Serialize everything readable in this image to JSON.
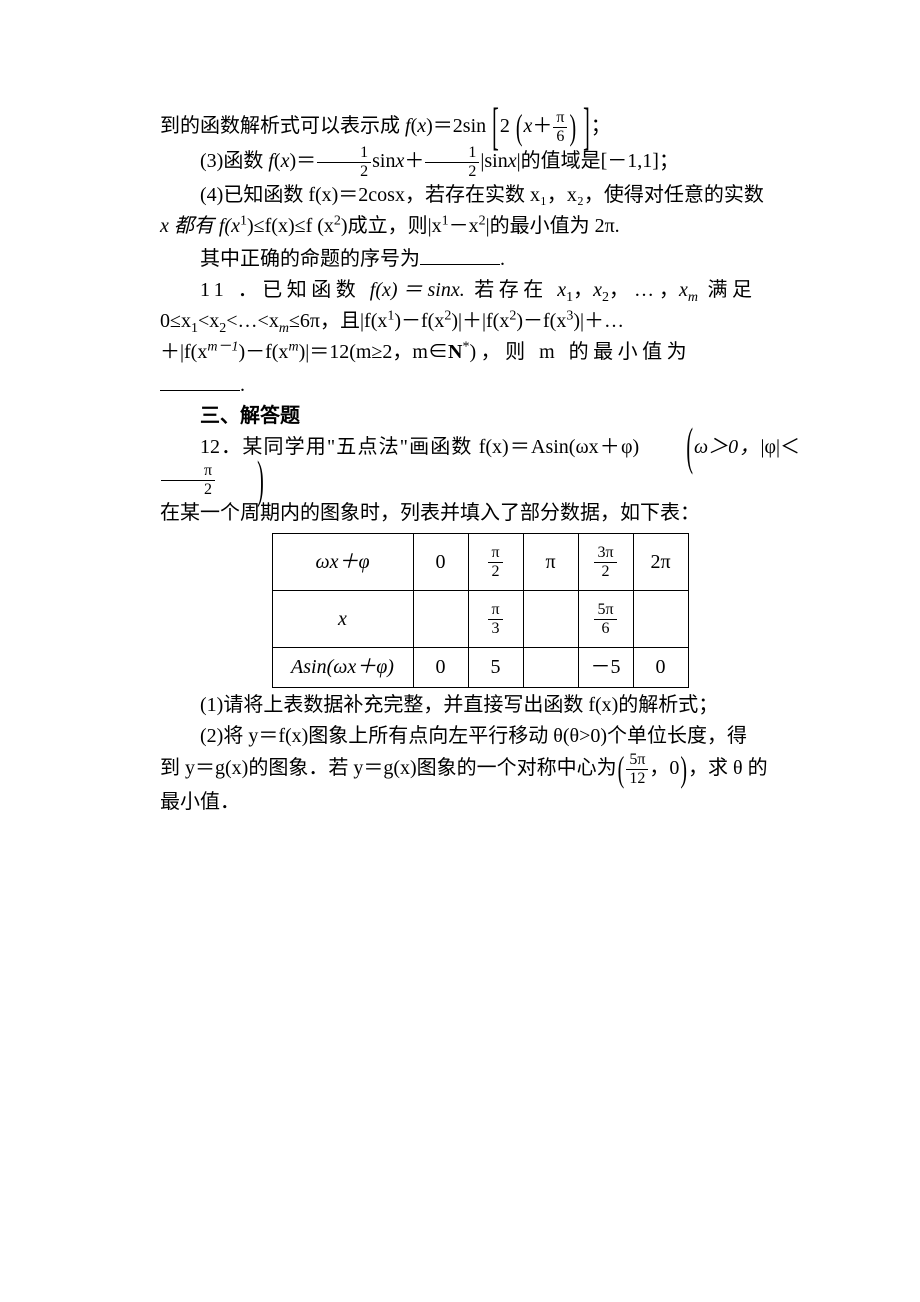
{
  "colors": {
    "text": "#000000",
    "background": "#ffffff",
    "rule": "#000000"
  },
  "typography": {
    "body_font": "SimSun / STSong",
    "math_font": "Times New Roman",
    "body_size_pt": 15,
    "line_height": 1.55
  },
  "p1": {
    "lead": "到的函数解析式可以表示成",
    "fx": "f",
    "x": "x",
    "eq": "＝2sin",
    "inner_pre": "2",
    "inner_x": "x",
    "plus": "＋",
    "frac_num": "π",
    "frac_den": "6",
    "tail": "；"
  },
  "p3": {
    "label": "(3)函数 ",
    "fx": "f",
    "x": "x",
    "eq": "＝",
    "half1_num": "1",
    "half1_den": "2",
    "sinx": "sin",
    "xv": "x",
    "plus": "＋",
    "half2_num": "1",
    "half2_den": "2",
    "abs_open": "|",
    "sinx2": "sin",
    "xv2": "x",
    "abs_close": "|",
    "tail": "的值域是[－1,1]；"
  },
  "p4": {
    "line1": "(4)已知函数 f(x)＝2cosx，若存在实数 x₁，x₂，使得对任意的实数",
    "line2_a": "x 都有 f(x",
    "sup1": "1",
    "mid1": ")≤f(x)≤f (x",
    "sup2": "2",
    "mid2": ")成立，则|x",
    "sup3": "1",
    "mid3": "－x",
    "sup4": "2",
    "tail": "|的最小值为 2π."
  },
  "p_seq": {
    "pre": "其中正确的命题的序号为",
    "post": "."
  },
  "q11": {
    "line1_a": "11 ．已知函数 ",
    "fx": "f(x) ＝ sinx.",
    "line1_b": " 若存在 ",
    "x1": "x",
    "sub1": "1",
    "comma": "，",
    "x2": "x",
    "sub2": "2",
    "dots": "， … ，",
    "xm": "x",
    "subm": "m",
    "manzu": " 满足",
    "line2_a": "0≤x",
    "s1": "1",
    "lt1": "<x",
    "s2": "2",
    "lt2": "<…<x",
    "sm": "m",
    "le": "≤6π，且|f(x",
    "sup1": "1",
    "m1": ")－f(x",
    "sup2": "2",
    "m2": ")|＋|f(x",
    "sup3": "2",
    "m3": ")－f(x",
    "sup4": "3",
    "m4": ")|＋…",
    "line3_a": "＋|f(x",
    "supm1": "m－1",
    "m5": ")－f(x",
    "supm": "m",
    "m6": ")|＝12(m≥2，m∈",
    "N": "N",
    "star": "*",
    "m7": ")，则 m 的最小值为",
    "blank_post": "."
  },
  "h3": "三、解答题",
  "q12": {
    "lead": "12．某同学用\"五点法\"画函数 f(x)＝Asin(ωx＋φ)",
    "cond_a": "ω＞0，",
    "cond_b": "|φ|＜",
    "frac_num": "π",
    "frac_den": "2",
    "line2": "在某一个周期内的图象时，列表并填入了部分数据，如下表："
  },
  "table": {
    "rows": [
      {
        "head": "ωx＋φ",
        "cells": [
          "0",
          {
            "num": "π",
            "den": "2"
          },
          "π",
          {
            "num": "3π",
            "den": "2"
          },
          "2π"
        ],
        "tall": true
      },
      {
        "head": "x",
        "cells": [
          "",
          {
            "num": "π",
            "den": "3"
          },
          "",
          {
            "num": "5π",
            "den": "6"
          },
          ""
        ],
        "tall": true
      },
      {
        "head": "Asin(ωx＋φ)",
        "cells": [
          "0",
          "5",
          "",
          "－5",
          "0"
        ],
        "tall": false
      }
    ]
  },
  "q12s1": "(1)请将上表数据补充完整，并直接写出函数 f(x)的解析式；",
  "q12s2": {
    "a": "(2)将 y＝f(x)图象上所有点向左平行移动 θ(θ>0)个单位长度，得"
  },
  "q12s3": {
    "a": "到 y＝g(x)的图象．若 y＝g(x)图象的一个对称中心为",
    "frac_num": "5π",
    "frac_den": "12",
    "zero": "0",
    "b": "，求 θ 的"
  },
  "q12s4": "最小值．"
}
